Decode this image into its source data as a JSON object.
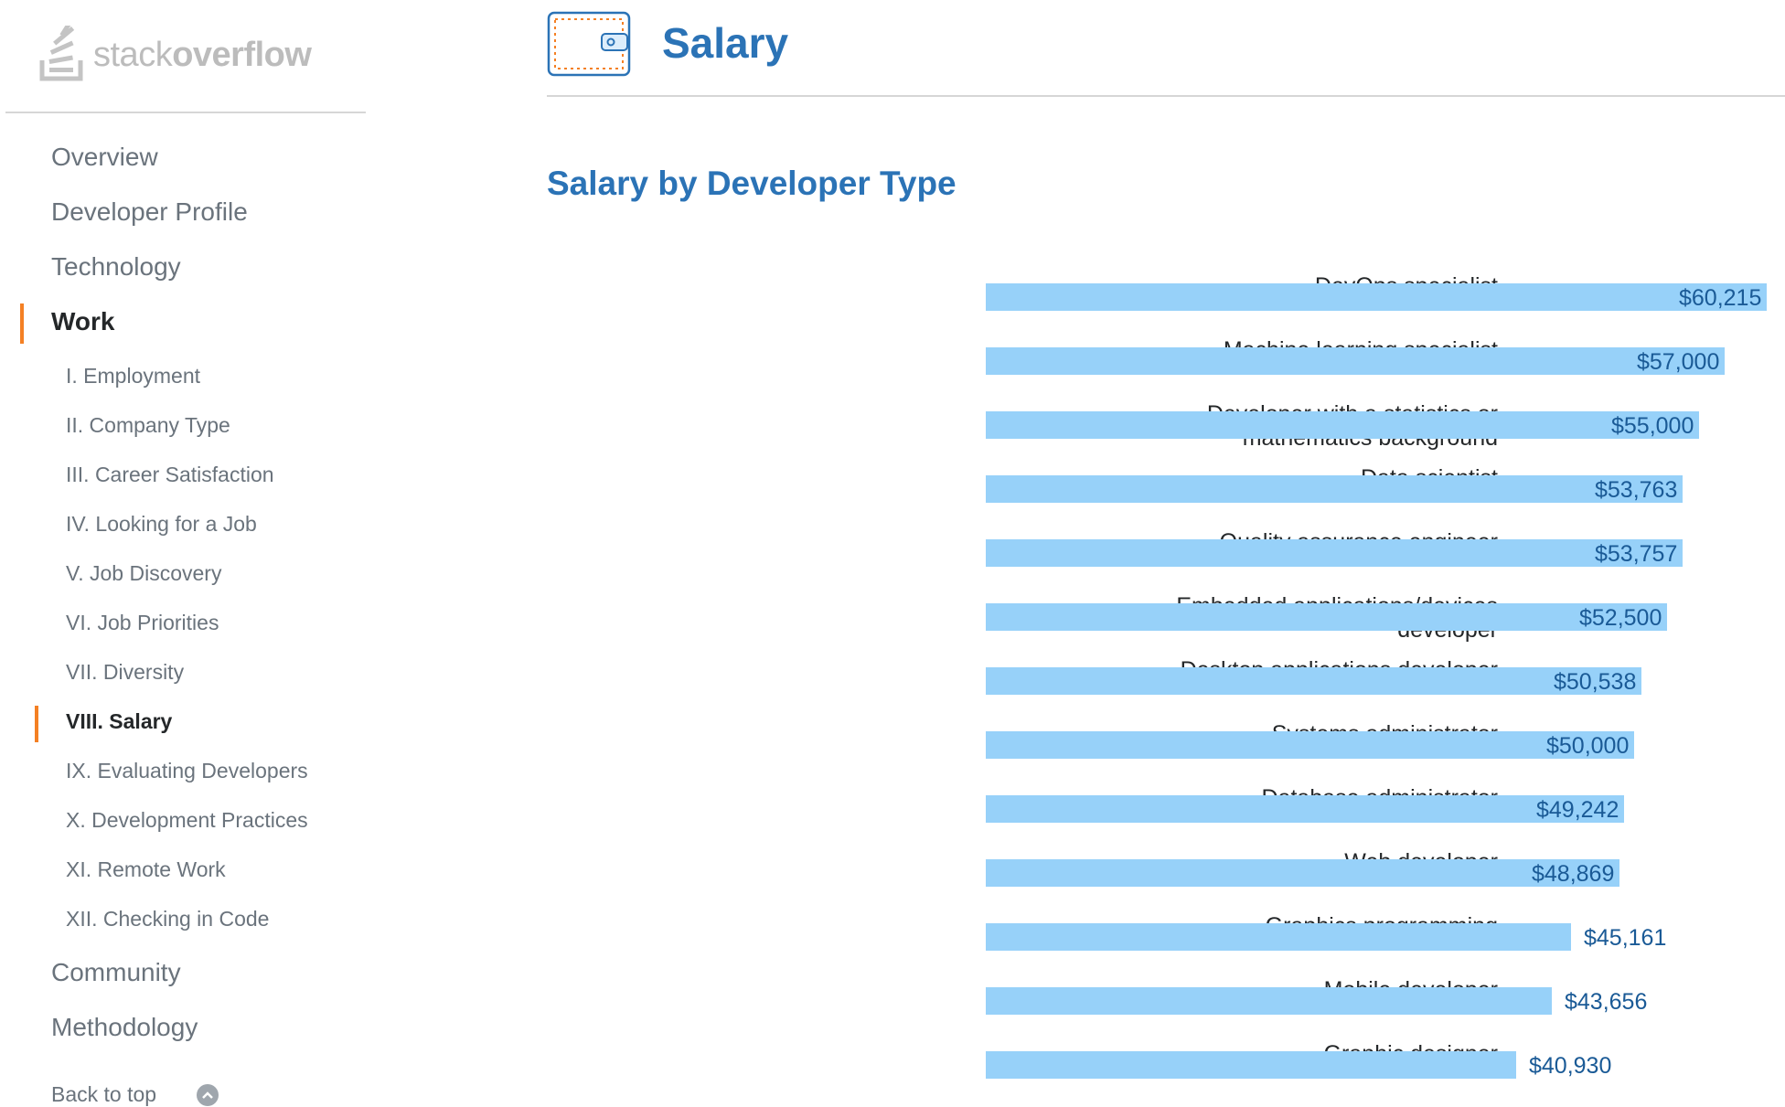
{
  "sidebar": {
    "logo": {
      "word1": "stack",
      "word2": "overflow"
    },
    "nav": [
      {
        "label": "Overview"
      },
      {
        "label": "Developer Profile"
      },
      {
        "label": "Technology"
      },
      {
        "label": "Work"
      }
    ],
    "sub_items": [
      {
        "label": "I. Employment"
      },
      {
        "label": "II. Company Type"
      },
      {
        "label": "III. Career Satisfaction"
      },
      {
        "label": "IV. Looking for a Job"
      },
      {
        "label": "V. Job Discovery"
      },
      {
        "label": "VI. Job Priorities"
      },
      {
        "label": "VII. Diversity"
      },
      {
        "label": "VIII. Salary"
      },
      {
        "label": "IX. Evaluating Developers"
      },
      {
        "label": "X. Development Practices"
      },
      {
        "label": "XI. Remote Work"
      },
      {
        "label": "XII. Checking in Code"
      }
    ],
    "nav_bottom": [
      {
        "label": "Community"
      },
      {
        "label": "Methodology"
      }
    ],
    "back_to_top": "Back to top"
  },
  "header": {
    "title": "Salary",
    "icon": "wallet-icon"
  },
  "section": {
    "title": "Salary by Developer Type"
  },
  "colors": {
    "accent": "#2b73b6",
    "marker": "#f48024",
    "bar": "#97d1f9",
    "value": "#1a5a96"
  },
  "chart_data": {
    "type": "bar",
    "orientation": "horizontal",
    "title": "Salary by Developer Type",
    "categories": [
      "DevOps specialist",
      "Machine learning specialist",
      "Developer with a statistics or mathematics background",
      "Data scientist",
      "Quality assurance engineer",
      "Embedded applications/devices developer",
      "Desktop applications developer",
      "Systems administrator",
      "Database administrator",
      "Web developer",
      "Graphics programming",
      "Mobile developer",
      "Graphic designer"
    ],
    "values": [
      60215,
      57000,
      55000,
      53763,
      53757,
      52500,
      50538,
      50000,
      49242,
      48869,
      45161,
      43656,
      40930
    ],
    "labels": [
      "$60,215",
      "$57,000",
      "$55,000",
      "$53,763",
      "$53,757",
      "$52,500",
      "$50,538",
      "$50,000",
      "$49,242",
      "$48,869",
      "$45,161",
      "$43,656",
      "$40,930"
    ],
    "xlim": [
      0,
      60215
    ],
    "grid": false,
    "legend": "none"
  }
}
